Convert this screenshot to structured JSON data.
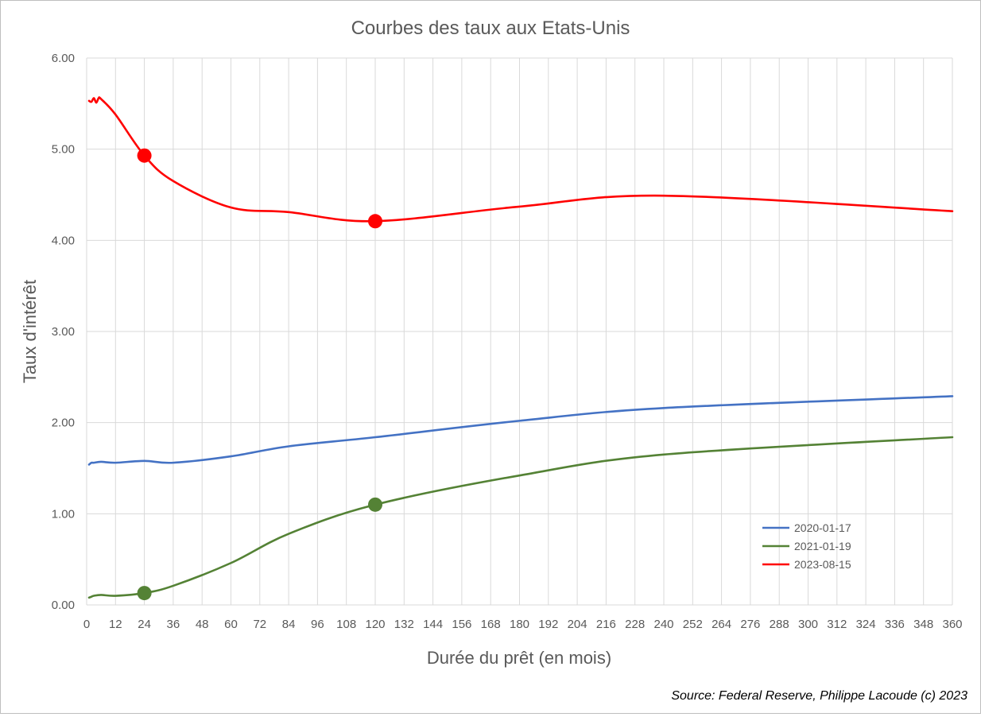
{
  "chart_data": {
    "type": "line",
    "title": "Courbes des taux aux Etats-Unis",
    "xlabel": "Durée du prêt (en mois)",
    "ylabel": "Taux d'intérêt",
    "xlim": [
      0,
      360
    ],
    "ylim": [
      0,
      6
    ],
    "x_ticks": [
      "0",
      "12",
      "24",
      "36",
      "48",
      "60",
      "72",
      "84",
      "96",
      "108",
      "120",
      "132",
      "144",
      "156",
      "168",
      "180",
      "192",
      "204",
      "216",
      "228",
      "240",
      "252",
      "264",
      "276",
      "288",
      "300",
      "312",
      "324",
      "336",
      "348",
      "360"
    ],
    "y_ticks": [
      "0.00",
      "1.00",
      "2.00",
      "3.00",
      "4.00",
      "5.00",
      "6.00"
    ],
    "grid": true,
    "legend_position": "right",
    "series": [
      {
        "name": "2020-01-17",
        "color": "#4472c4",
        "x": [
          1,
          2,
          3,
          6,
          12,
          24,
          36,
          60,
          84,
          120,
          180,
          240,
          360
        ],
        "y": [
          1.54,
          1.56,
          1.56,
          1.57,
          1.56,
          1.58,
          1.56,
          1.63,
          1.74,
          1.84,
          2.02,
          2.16,
          2.29
        ]
      },
      {
        "name": "2021-01-19",
        "color": "#548235",
        "x": [
          1,
          2,
          3,
          6,
          12,
          24,
          36,
          60,
          84,
          120,
          180,
          240,
          360
        ],
        "y": [
          0.08,
          0.09,
          0.1,
          0.11,
          0.1,
          0.13,
          0.21,
          0.46,
          0.78,
          1.1,
          1.42,
          1.65,
          1.84
        ]
      },
      {
        "name": "2023-08-15",
        "color": "#ff0000",
        "x": [
          1,
          2,
          3,
          4,
          5,
          6,
          12,
          24,
          36,
          60,
          84,
          120,
          180,
          240,
          360
        ],
        "y": [
          5.53,
          5.52,
          5.56,
          5.51,
          5.56,
          5.55,
          5.38,
          4.93,
          4.65,
          4.36,
          4.31,
          4.21,
          4.37,
          4.49,
          4.32
        ]
      }
    ],
    "markers": [
      {
        "series": "2023-08-15",
        "x": 24,
        "y": 4.93
      },
      {
        "series": "2023-08-15",
        "x": 120,
        "y": 4.21
      },
      {
        "series": "2021-01-19",
        "x": 24,
        "y": 0.13
      },
      {
        "series": "2021-01-19",
        "x": 120,
        "y": 1.1
      }
    ]
  },
  "source_text": "Source: Federal Reserve, Philippe Lacoude (c) 2023"
}
